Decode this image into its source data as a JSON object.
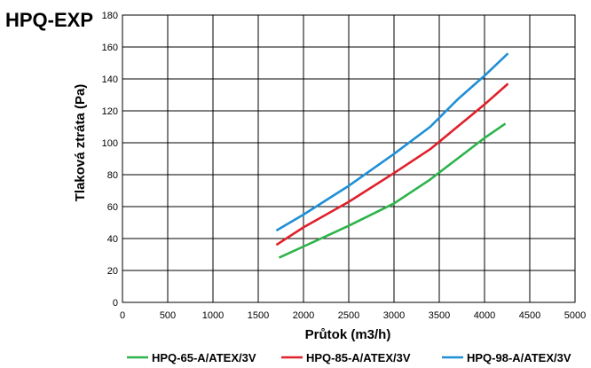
{
  "chart_data": {
    "type": "line",
    "title": "HPQ-EXP",
    "xlabel": "Průtok (m3/h)",
    "ylabel": "Tlaková ztráta (Pa)",
    "xlim": [
      0,
      5000
    ],
    "ylim": [
      0,
      180
    ],
    "xticks": [
      0,
      500,
      1000,
      1500,
      2000,
      2500,
      3000,
      3500,
      4000,
      4500,
      5000
    ],
    "yticks": [
      0,
      20,
      40,
      60,
      80,
      100,
      120,
      140,
      160,
      180
    ],
    "grid": true,
    "legend_position": "bottom",
    "series": [
      {
        "name": "HPQ-65-A/ATEX/3V",
        "color": "#2db34a",
        "points": [
          [
            1730,
            28
          ],
          [
            2000,
            35
          ],
          [
            2500,
            48
          ],
          [
            3000,
            62
          ],
          [
            3400,
            77
          ],
          [
            3700,
            90
          ],
          [
            4000,
            103
          ],
          [
            4230,
            112
          ]
        ]
      },
      {
        "name": "HPQ-85-A/ATEX/3V",
        "color": "#e0202a",
        "points": [
          [
            1700,
            36
          ],
          [
            2000,
            47
          ],
          [
            2500,
            63
          ],
          [
            3000,
            81
          ],
          [
            3400,
            96
          ],
          [
            3700,
            110
          ],
          [
            4000,
            124
          ],
          [
            4260,
            137
          ]
        ]
      },
      {
        "name": "HPQ-98-A/ATEX/3V",
        "color": "#1f8fd6",
        "points": [
          [
            1700,
            45
          ],
          [
            2000,
            55
          ],
          [
            2500,
            73
          ],
          [
            3000,
            93
          ],
          [
            3400,
            110
          ],
          [
            3700,
            127
          ],
          [
            4000,
            142
          ],
          [
            4260,
            156
          ]
        ]
      }
    ]
  }
}
